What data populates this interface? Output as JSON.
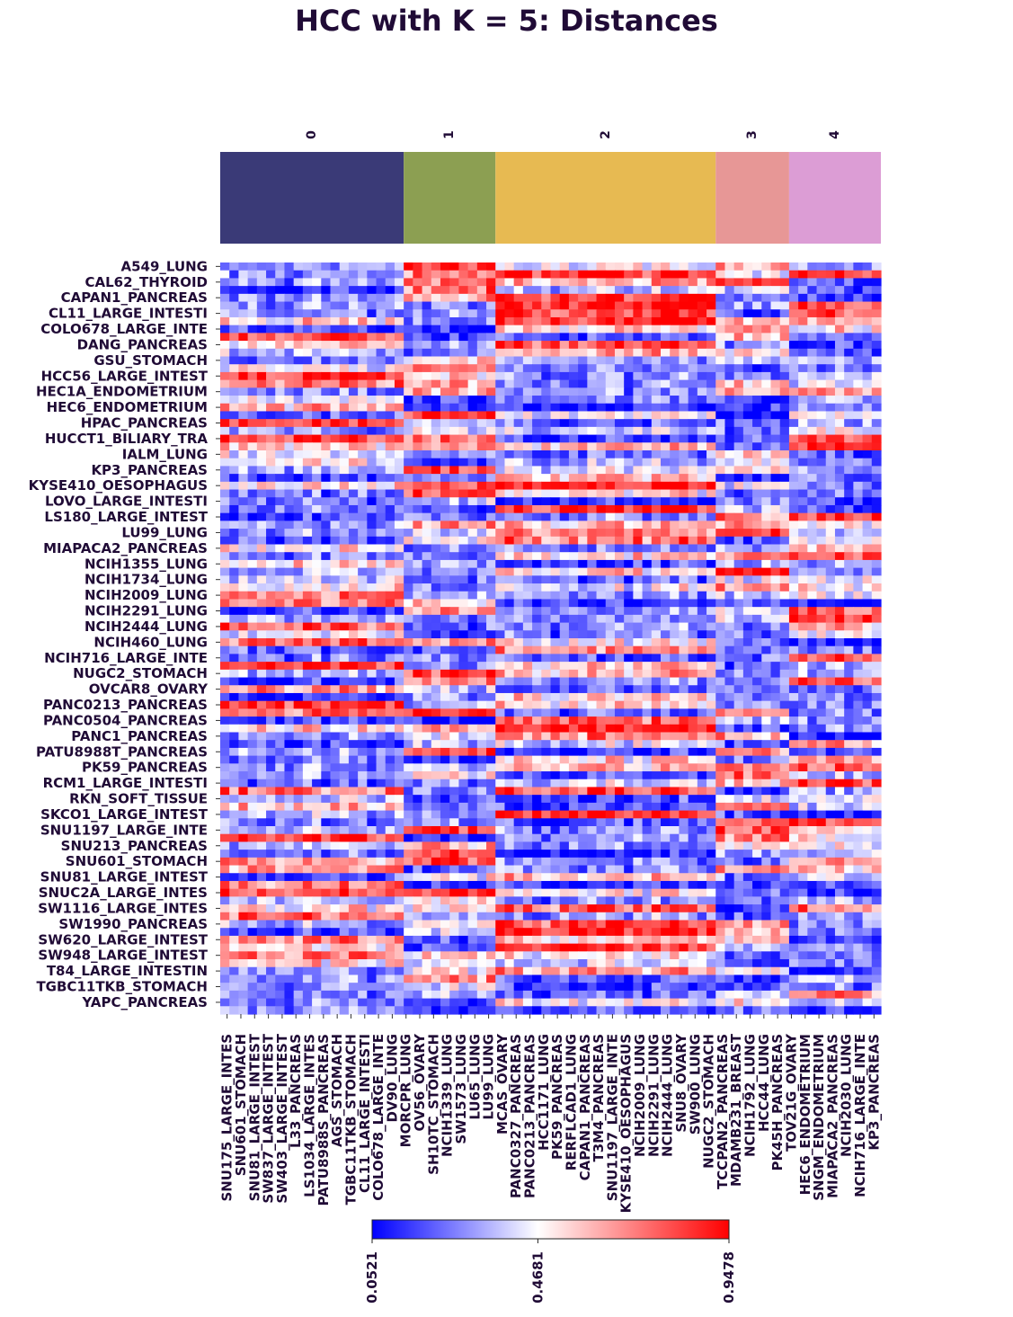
{
  "chart_data": {
    "type": "heatmap",
    "title": "HCC with K = 5: Distances",
    "clusters": [
      {
        "label": "0",
        "color": "#3a3a77",
        "size": 20
      },
      {
        "label": "1",
        "color": "#8c9f52",
        "size": 10
      },
      {
        "label": "2",
        "color": "#e7ba52",
        "size": 24
      },
      {
        "label": "3",
        "color": "#e79796",
        "size": 8
      },
      {
        "label": "4",
        "color": "#dc9dd5",
        "size": 10
      }
    ],
    "row_labels": [
      "A549_LUNG",
      "CAL62_THYROID",
      "CAPAN1_PANCREAS",
      "CL11_LARGE_INTESTI",
      "COLO678_LARGE_INTE",
      "DANG_PANCREAS",
      "GSU_STOMACH",
      "HCC56_LARGE_INTEST",
      "HEC1A_ENDOMETRIUM",
      "HEC6_ENDOMETRIUM",
      "HPAC_PANCREAS",
      "HUCCT1_BILIARY_TRA",
      "IALM_LUNG",
      "KP3_PANCREAS",
      "KYSE410_OESOPHAGUS",
      "LOVO_LARGE_INTESTI",
      "LS180_LARGE_INTEST",
      "LU99_LUNG",
      "MIAPACA2_PANCREAS",
      "NCIH1355_LUNG",
      "NCIH1734_LUNG",
      "NCIH2009_LUNG",
      "NCIH2291_LUNG",
      "NCIH2444_LUNG",
      "NCIH460_LUNG",
      "NCIH716_LARGE_INTE",
      "NUGC2_STOMACH",
      "OVCAR8_OVARY",
      "PANC0213_PANCREAS",
      "PANC0504_PANCREAS",
      "PANC1_PANCREAS",
      "PATU8988T_PANCREAS",
      "PK59_PANCREAS",
      "RCM1_LARGE_INTESTI",
      "RKN_SOFT_TISSUE",
      "SKCO1_LARGE_INTEST",
      "SNU1197_LARGE_INTE",
      "SNU213_PANCREAS",
      "SNU601_STOMACH",
      "SNU81_LARGE_INTEST",
      "SNUC2A_LARGE_INTES",
      "SW1116_LARGE_INTES",
      "SW1990_PANCREAS",
      "SW620_LARGE_INTEST",
      "SW948_LARGE_INTEST",
      "T84_LARGE_INTESTIN",
      "TGBC11TKB_STOMACH",
      "YAPC_PANCREAS"
    ],
    "col_labels": [
      "SNU175_LARGE_INTES",
      "SNU601_STOMACH",
      "SNU81_LARGE_INTEST",
      "SW837_LARGE_INTEST",
      "SW403_LARGE_INTEST",
      "L33_PANCREAS",
      "LS1034_LARGE_INTES",
      "PATU8988S_PANCREAS",
      "AGS_STOMACH",
      "TGBC11TKB_STOMACH",
      "CL11_LARGE_INTESTI",
      "COLO678_LARGE_INTE",
      "DV90_LUNG",
      "MORCPR_LUNG",
      "OV56_OVARY",
      "SH10TC_STOMACH",
      "NCIH1339_LUNG",
      "SW1573_LUNG",
      "LU65_LUNG",
      "LU99_LUNG",
      "MCAS_OVARY",
      "PANC0327_PANCREAS",
      "PANC0213_PANCREAS",
      "HCC1171_LUNG",
      "PK59_PANCREAS",
      "RERFLCAD1_LUNG",
      "CAPAN1_PANCREAS",
      "T3M4_PANCREAS",
      "SNU1197_LARGE_INTE",
      "KYSE410_OESOPHAGUS",
      "NCIH2009_LUNG",
      "NCIH2291_LUNG",
      "NCIH2444_LUNG",
      "SNU8_OVARY",
      "SW900_LUNG",
      "NUGC2_STOMACH",
      "TCCPAN2_PANCREAS",
      "MDAMB231_BREAST",
      "NCIH1792_LUNG",
      "HCC44_LUNG",
      "PK45H_PANCREAS",
      "TOV21G_OVARY",
      "HEC6_ENDOMETRIUM",
      "SNGM_ENDOMETRIUM",
      "MIAPACA2_PANCREAS",
      "NCIH2030_LUNG",
      "NCIH716_LARGE_INTE",
      "KP3_PANCREAS"
    ],
    "colorbar": {
      "min": 0.0521,
      "mid": 0.4681,
      "max": 0.9478,
      "ticks": [
        "0.0521",
        "0.4681",
        "0.9478"
      ],
      "colors": [
        "#0000ff",
        "#ffffff",
        "#ff0000"
      ]
    },
    "n_rows": 96,
    "n_cols": 72
  }
}
